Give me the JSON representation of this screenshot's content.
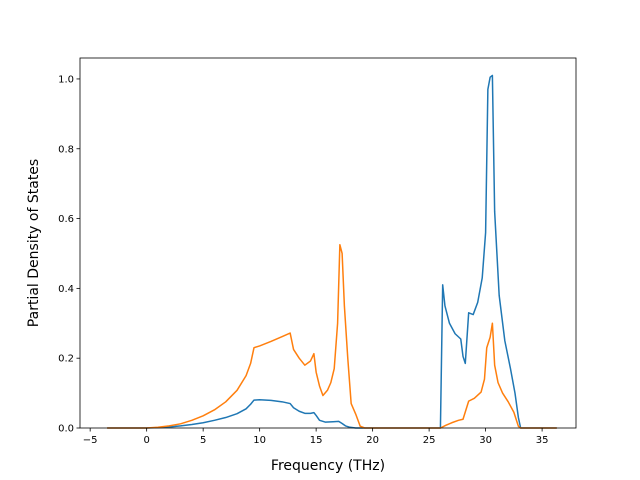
{
  "chart_data": {
    "type": "line",
    "title": "",
    "xlabel": "Frequency (THz)",
    "ylabel": "Partial Density of States",
    "xlim": [
      -5.9,
      38.0
    ],
    "ylim": [
      0.0,
      1.06
    ],
    "xticks": [
      -5,
      0,
      5,
      10,
      15,
      20,
      25,
      30,
      35
    ],
    "xtick_labels": [
      "−5",
      "0",
      "5",
      "10",
      "15",
      "20",
      "25",
      "30",
      "35"
    ],
    "yticks": [
      0.0,
      0.2,
      0.4,
      0.6,
      0.8,
      1.0
    ],
    "ytick_labels": [
      "0.0",
      "0.2",
      "0.4",
      "0.6",
      "0.8",
      "1.0"
    ],
    "grid": false,
    "legend": "none",
    "series": [
      {
        "color": "#1f77b4",
        "points": [
          [
            -3.5,
            0.0
          ],
          [
            0.0,
            0.0
          ],
          [
            1.0,
            0.001
          ],
          [
            2.0,
            0.003
          ],
          [
            3.0,
            0.006
          ],
          [
            4.0,
            0.01
          ],
          [
            5.0,
            0.015
          ],
          [
            6.0,
            0.022
          ],
          [
            7.0,
            0.03
          ],
          [
            8.0,
            0.041
          ],
          [
            8.8,
            0.055
          ],
          [
            9.2,
            0.068
          ],
          [
            9.5,
            0.08
          ],
          [
            10.0,
            0.081
          ],
          [
            11.0,
            0.079
          ],
          [
            12.0,
            0.075
          ],
          [
            12.7,
            0.07
          ],
          [
            13.0,
            0.058
          ],
          [
            13.5,
            0.048
          ],
          [
            14.0,
            0.042
          ],
          [
            14.5,
            0.042
          ],
          [
            14.8,
            0.044
          ],
          [
            15.0,
            0.036
          ],
          [
            15.3,
            0.022
          ],
          [
            15.8,
            0.017
          ],
          [
            16.5,
            0.018
          ],
          [
            17.0,
            0.019
          ],
          [
            17.3,
            0.013
          ],
          [
            17.6,
            0.006
          ],
          [
            18.0,
            0.002
          ],
          [
            18.5,
            0.0
          ],
          [
            26.0,
            0.0
          ],
          [
            26.2,
            0.41
          ],
          [
            26.4,
            0.35
          ],
          [
            26.8,
            0.3
          ],
          [
            27.3,
            0.27
          ],
          [
            27.8,
            0.255
          ],
          [
            28.0,
            0.205
          ],
          [
            28.2,
            0.185
          ],
          [
            28.5,
            0.33
          ],
          [
            28.9,
            0.325
          ],
          [
            29.3,
            0.36
          ],
          [
            29.7,
            0.43
          ],
          [
            30.0,
            0.56
          ],
          [
            30.2,
            0.97
          ],
          [
            30.4,
            1.005
          ],
          [
            30.6,
            1.01
          ],
          [
            30.8,
            0.62
          ],
          [
            31.2,
            0.38
          ],
          [
            31.7,
            0.25
          ],
          [
            32.2,
            0.17
          ],
          [
            32.6,
            0.1
          ],
          [
            32.9,
            0.03
          ],
          [
            33.1,
            0.0
          ],
          [
            36.3,
            0.0
          ]
        ]
      },
      {
        "color": "#ff7f0e",
        "points": [
          [
            -3.5,
            0.0
          ],
          [
            0.0,
            0.0
          ],
          [
            1.0,
            0.002
          ],
          [
            2.0,
            0.006
          ],
          [
            3.0,
            0.012
          ],
          [
            4.0,
            0.022
          ],
          [
            5.0,
            0.035
          ],
          [
            6.0,
            0.052
          ],
          [
            7.0,
            0.075
          ],
          [
            8.0,
            0.108
          ],
          [
            8.8,
            0.15
          ],
          [
            9.2,
            0.185
          ],
          [
            9.5,
            0.23
          ],
          [
            10.0,
            0.235
          ],
          [
            11.0,
            0.248
          ],
          [
            12.0,
            0.262
          ],
          [
            12.7,
            0.272
          ],
          [
            13.0,
            0.225
          ],
          [
            13.5,
            0.2
          ],
          [
            14.0,
            0.18
          ],
          [
            14.5,
            0.192
          ],
          [
            14.8,
            0.213
          ],
          [
            15.0,
            0.16
          ],
          [
            15.3,
            0.12
          ],
          [
            15.6,
            0.093
          ],
          [
            16.0,
            0.108
          ],
          [
            16.3,
            0.13
          ],
          [
            16.6,
            0.17
          ],
          [
            16.9,
            0.3
          ],
          [
            17.1,
            0.525
          ],
          [
            17.3,
            0.5
          ],
          [
            17.5,
            0.35
          ],
          [
            17.8,
            0.2
          ],
          [
            18.1,
            0.07
          ],
          [
            18.5,
            0.04
          ],
          [
            18.9,
            0.005
          ],
          [
            19.3,
            0.0
          ],
          [
            26.0,
            0.0
          ],
          [
            26.5,
            0.008
          ],
          [
            27.0,
            0.015
          ],
          [
            27.6,
            0.022
          ],
          [
            28.0,
            0.025
          ],
          [
            28.5,
            0.077
          ],
          [
            29.0,
            0.085
          ],
          [
            29.6,
            0.103
          ],
          [
            29.9,
            0.14
          ],
          [
            30.1,
            0.23
          ],
          [
            30.4,
            0.26
          ],
          [
            30.6,
            0.3
          ],
          [
            30.8,
            0.18
          ],
          [
            31.1,
            0.13
          ],
          [
            31.5,
            0.1
          ],
          [
            32.0,
            0.075
          ],
          [
            32.5,
            0.045
          ],
          [
            32.9,
            0.005
          ],
          [
            33.1,
            0.0
          ],
          [
            36.3,
            0.0
          ]
        ]
      }
    ]
  }
}
